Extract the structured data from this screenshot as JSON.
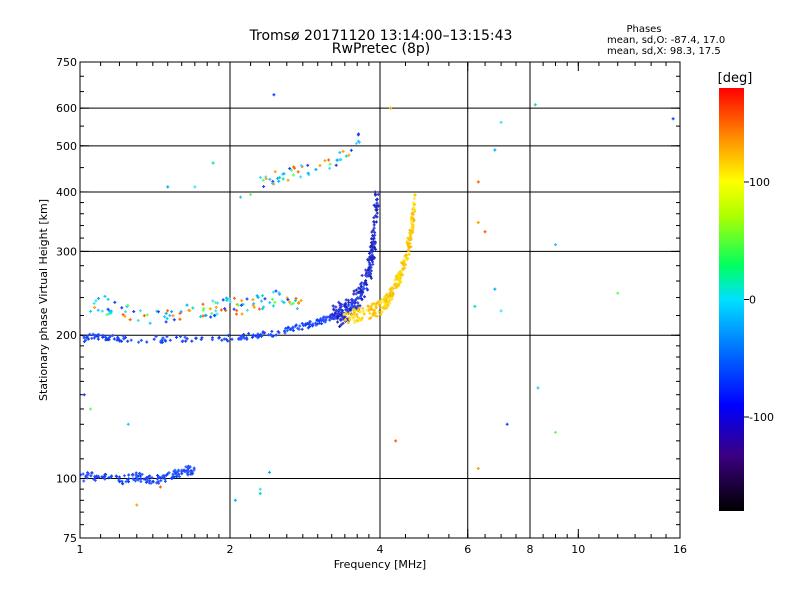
{
  "chart_data": {
    "type": "scatter",
    "title": "Tromsø 20171120 13:14:00–13:15:43",
    "subtitle": "RwPretec (8p)",
    "xlabel": "Frequency [MHz]",
    "ylabel": "Stationary phase Virtual Height [km]",
    "x_scale": "log2",
    "y_scale": "log",
    "xlim": [
      1,
      16
    ],
    "ylim": [
      75,
      750
    ],
    "x_ticks": [
      1,
      2,
      4,
      6,
      8,
      10,
      16
    ],
    "x_tick_labels": [
      "1",
      "2",
      "4",
      "6",
      "8",
      "10",
      "16"
    ],
    "y_ticks": [
      75,
      100,
      200,
      300,
      400,
      500,
      600,
      750
    ],
    "y_tick_labels": [
      "75",
      "100",
      "200",
      "300",
      "400",
      "500",
      "600",
      "750"
    ],
    "grid": true,
    "colorbar": {
      "label": "[deg]",
      "range": [
        -180,
        180
      ],
      "ticks": [
        100,
        0,
        -100
      ],
      "tick_labels": [
        "100",
        "0",
        "-100"
      ]
    },
    "phase_stats": {
      "title": "Phases",
      "line_o": "mean, sd,O: -87.4, 17.0",
      "line_x": "mean, sd,X:  98.3, 17.5"
    },
    "o_trace_bottom": [
      [
        1.02,
        196
      ],
      [
        1.05,
        199
      ],
      [
        1.1,
        199
      ],
      [
        1.15,
        198
      ],
      [
        1.2,
        197
      ],
      [
        1.3,
        196
      ],
      [
        1.4,
        196
      ],
      [
        1.5,
        196
      ],
      [
        1.6,
        196
      ],
      [
        1.7,
        196
      ],
      [
        1.8,
        197
      ],
      [
        1.9,
        197
      ],
      [
        2.0,
        197
      ],
      [
        2.1,
        198
      ],
      [
        2.2,
        199
      ],
      [
        2.3,
        200
      ],
      [
        2.4,
        201
      ],
      [
        2.5,
        203
      ],
      [
        2.6,
        205
      ],
      [
        2.7,
        207
      ],
      [
        2.8,
        209
      ],
      [
        2.9,
        211
      ],
      [
        3.0,
        213
      ],
      [
        3.1,
        216
      ],
      [
        3.2,
        218
      ],
      [
        3.3,
        221
      ],
      [
        3.4,
        225
      ],
      [
        3.5,
        230
      ],
      [
        3.6,
        238
      ],
      [
        3.7,
        250
      ],
      [
        3.8,
        270
      ],
      [
        3.85,
        290
      ],
      [
        3.9,
        330
      ],
      [
        3.95,
        390
      ]
    ],
    "o_trace_upper": [
      [
        1.05,
        230
      ],
      [
        1.1,
        235
      ],
      [
        1.15,
        228
      ],
      [
        1.25,
        225
      ],
      [
        1.35,
        218
      ],
      [
        1.45,
        220
      ],
      [
        1.6,
        222
      ],
      [
        1.7,
        228
      ],
      [
        1.8,
        225
      ],
      [
        1.9,
        230
      ],
      [
        2.0,
        232
      ],
      [
        2.1,
        228
      ],
      [
        2.2,
        232
      ],
      [
        2.3,
        235
      ],
      [
        2.4,
        237
      ],
      [
        2.5,
        240
      ],
      [
        2.6,
        242
      ],
      [
        2.7,
        238
      ],
      [
        2.8,
        232
      ]
    ],
    "o_trace_es": [
      [
        1.0,
        100
      ],
      [
        1.05,
        102
      ],
      [
        1.1,
        100
      ],
      [
        1.15,
        101
      ],
      [
        1.2,
        99
      ],
      [
        1.25,
        100
      ],
      [
        1.3,
        101
      ],
      [
        1.35,
        100
      ],
      [
        1.4,
        99
      ],
      [
        1.45,
        100
      ],
      [
        1.5,
        101
      ],
      [
        1.55,
        102
      ],
      [
        1.6,
        103
      ],
      [
        1.65,
        104
      ],
      [
        1.7,
        104
      ]
    ],
    "o_trace_f2": [
      [
        2.3,
        420
      ],
      [
        2.4,
        425
      ],
      [
        2.5,
        430
      ],
      [
        2.6,
        435
      ],
      [
        2.7,
        440
      ],
      [
        2.8,
        445
      ],
      [
        2.9,
        448
      ],
      [
        3.0,
        450
      ],
      [
        3.1,
        455
      ],
      [
        3.3,
        470
      ],
      [
        3.5,
        490
      ],
      [
        3.6,
        510
      ],
      [
        3.65,
        520
      ]
    ],
    "x_trace": [
      [
        3.4,
        218
      ],
      [
        3.6,
        220
      ],
      [
        3.8,
        224
      ],
      [
        4.0,
        228
      ],
      [
        4.1,
        234
      ],
      [
        4.2,
        242
      ],
      [
        4.3,
        255
      ],
      [
        4.4,
        270
      ],
      [
        4.5,
        290
      ],
      [
        4.6,
        320
      ],
      [
        4.65,
        350
      ],
      [
        4.7,
        390
      ]
    ],
    "scattered_points": [
      [
        1.5,
        410
      ],
      [
        1.7,
        410
      ],
      [
        1.85,
        460
      ],
      [
        2.1,
        390
      ],
      [
        2.2,
        395
      ],
      [
        2.45,
        640
      ],
      [
        4.2,
        600
      ],
      [
        6.3,
        420
      ],
      [
        6.8,
        490
      ],
      [
        7.0,
        560
      ],
      [
        8.2,
        610
      ],
      [
        9.0,
        310
      ],
      [
        12.0,
        245
      ],
      [
        15.5,
        570
      ],
      [
        6.3,
        345
      ],
      [
        6.5,
        330
      ],
      [
        6.8,
        250
      ],
      [
        7.0,
        225
      ],
      [
        6.2,
        230
      ],
      [
        8.3,
        155
      ],
      [
        9.0,
        125
      ],
      [
        7.2,
        130
      ],
      [
        6.3,
        105
      ],
      [
        4.3,
        120
      ],
      [
        2.4,
        103
      ],
      [
        2.3,
        95
      ],
      [
        2.3,
        93
      ],
      [
        1.25,
        130
      ],
      [
        1.05,
        140
      ],
      [
        1.02,
        150
      ],
      [
        1.3,
        88
      ],
      [
        1.45,
        96
      ],
      [
        2.05,
        90
      ]
    ]
  }
}
